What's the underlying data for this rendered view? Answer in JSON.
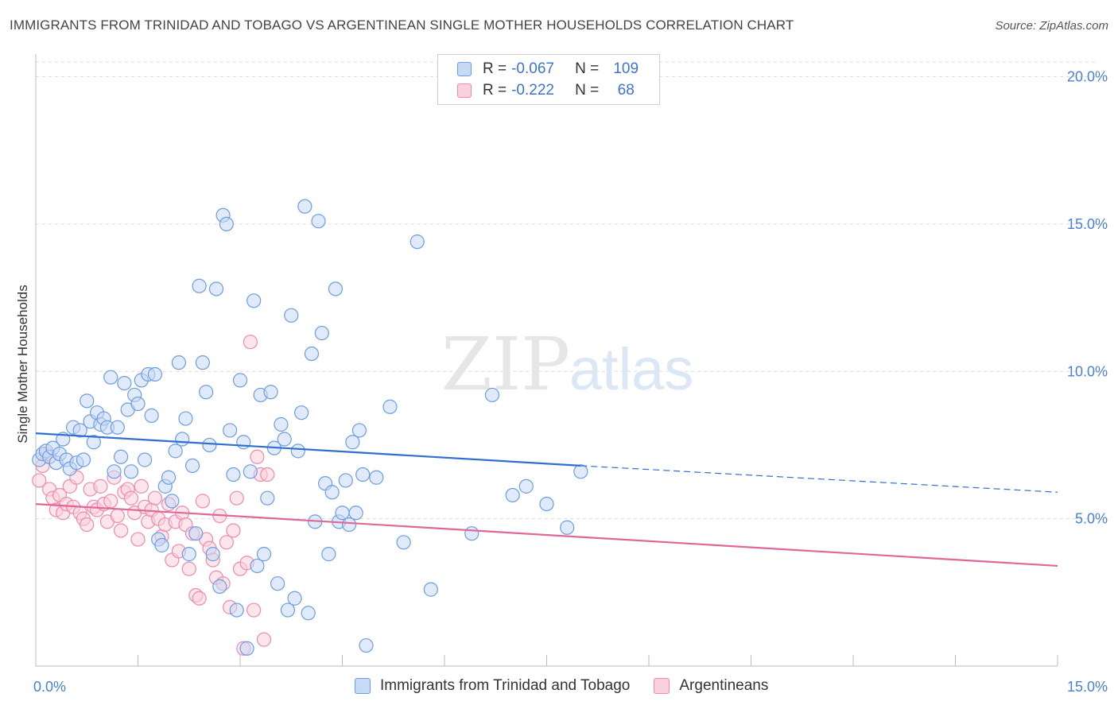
{
  "title": "IMMIGRANTS FROM TRINIDAD AND TOBAGO VS ARGENTINEAN SINGLE MOTHER HOUSEHOLDS CORRELATION CHART",
  "source": "Source: ZipAtlas.com",
  "watermark": {
    "zip": "ZIP",
    "atlas": "atlas"
  },
  "legend": {
    "rows": [
      {
        "r_label": "R =",
        "r_value": "-0.067",
        "n_label": "N =",
        "n_value": "109"
      },
      {
        "r_label": "R =",
        "r_value": "-0.222",
        "n_label": "N =",
        "n_value": "68"
      }
    ]
  },
  "bottom_legend": {
    "series1": "Immigrants from Trinidad and Tobago",
    "series2": "Argentineans"
  },
  "colors": {
    "blue_fill": "#c6d9f5",
    "blue_stroke": "#6d9de0",
    "blue_line": "#2f6fcf",
    "pink_fill": "#fbd0dd",
    "pink_stroke": "#ee8aab",
    "pink_line": "#e0679a",
    "tick_text": "#4a7fd6",
    "grid": "#dcdcdc"
  },
  "chart_data": {
    "type": "scatter",
    "ylabel": "Single Mother Households",
    "xlim": [
      0,
      15
    ],
    "ylim": [
      0,
      20.5
    ],
    "x_tick_labels": [
      {
        "value": 0,
        "label": "0.0%"
      },
      {
        "value": 15,
        "label": "15.0%"
      }
    ],
    "y_tick_labels": [
      {
        "value": 5,
        "label": "5.0%"
      },
      {
        "value": 10,
        "label": "10.0%"
      },
      {
        "value": 15,
        "label": "15.0%"
      },
      {
        "value": 20,
        "label": "20.0%"
      }
    ],
    "series": [
      {
        "name": "Immigrants from Trinidad and Tobago",
        "R": -0.067,
        "N": 109,
        "trend": {
          "x0": 0,
          "y0": 7.9,
          "x_solid_end": 8.0,
          "y_solid_end": 6.8,
          "x1": 15,
          "y1": 5.9
        },
        "points": [
          [
            0.05,
            7.0
          ],
          [
            0.1,
            7.2
          ],
          [
            0.15,
            7.3
          ],
          [
            0.2,
            7.1
          ],
          [
            0.25,
            7.4
          ],
          [
            0.3,
            6.9
          ],
          [
            0.35,
            7.2
          ],
          [
            0.4,
            7.7
          ],
          [
            0.45,
            7.0
          ],
          [
            0.5,
            6.7
          ],
          [
            0.55,
            8.1
          ],
          [
            0.6,
            6.9
          ],
          [
            0.65,
            8.0
          ],
          [
            0.7,
            7.0
          ],
          [
            0.75,
            9.0
          ],
          [
            0.8,
            8.3
          ],
          [
            0.85,
            7.6
          ],
          [
            0.9,
            8.6
          ],
          [
            0.95,
            8.2
          ],
          [
            1.0,
            8.4
          ],
          [
            1.05,
            8.1
          ],
          [
            1.1,
            9.8
          ],
          [
            1.15,
            6.6
          ],
          [
            1.2,
            8.1
          ],
          [
            1.25,
            7.1
          ],
          [
            1.3,
            9.6
          ],
          [
            1.35,
            8.7
          ],
          [
            1.4,
            6.6
          ],
          [
            1.45,
            9.2
          ],
          [
            1.5,
            8.9
          ],
          [
            1.55,
            9.7
          ],
          [
            1.6,
            7.0
          ],
          [
            1.65,
            9.9
          ],
          [
            1.7,
            8.5
          ],
          [
            1.75,
            9.9
          ],
          [
            1.8,
            4.3
          ],
          [
            1.85,
            4.1
          ],
          [
            1.9,
            6.1
          ],
          [
            1.95,
            6.4
          ],
          [
            2.0,
            5.6
          ],
          [
            2.05,
            7.3
          ],
          [
            2.1,
            10.3
          ],
          [
            2.15,
            7.7
          ],
          [
            2.2,
            8.4
          ],
          [
            2.25,
            3.8
          ],
          [
            2.3,
            6.8
          ],
          [
            2.35,
            4.5
          ],
          [
            2.4,
            12.9
          ],
          [
            2.45,
            10.3
          ],
          [
            2.5,
            9.3
          ],
          [
            2.55,
            7.5
          ],
          [
            2.6,
            3.8
          ],
          [
            2.65,
            12.8
          ],
          [
            2.7,
            2.7
          ],
          [
            2.75,
            15.3
          ],
          [
            2.8,
            15.0
          ],
          [
            2.85,
            8.0
          ],
          [
            2.9,
            6.5
          ],
          [
            2.95,
            1.9
          ],
          [
            3.0,
            9.7
          ],
          [
            3.05,
            7.6
          ],
          [
            3.1,
            0.6
          ],
          [
            3.15,
            6.6
          ],
          [
            3.2,
            12.4
          ],
          [
            3.25,
            3.4
          ],
          [
            3.3,
            9.2
          ],
          [
            3.35,
            3.8
          ],
          [
            3.4,
            5.7
          ],
          [
            3.45,
            9.3
          ],
          [
            3.5,
            7.4
          ],
          [
            3.55,
            2.8
          ],
          [
            3.6,
            8.2
          ],
          [
            3.65,
            7.7
          ],
          [
            3.7,
            1.9
          ],
          [
            3.75,
            11.9
          ],
          [
            3.8,
            2.3
          ],
          [
            3.85,
            7.3
          ],
          [
            3.9,
            8.6
          ],
          [
            3.95,
            15.6
          ],
          [
            4.0,
            1.8
          ],
          [
            4.05,
            10.6
          ],
          [
            4.1,
            4.9
          ],
          [
            4.15,
            15.1
          ],
          [
            4.2,
            11.3
          ],
          [
            4.25,
            6.2
          ],
          [
            4.3,
            3.8
          ],
          [
            4.35,
            5.9
          ],
          [
            4.4,
            12.8
          ],
          [
            4.45,
            4.9
          ],
          [
            4.5,
            5.2
          ],
          [
            4.55,
            6.3
          ],
          [
            4.6,
            4.8
          ],
          [
            4.65,
            7.6
          ],
          [
            4.7,
            5.2
          ],
          [
            4.75,
            8.0
          ],
          [
            4.8,
            6.5
          ],
          [
            4.85,
            0.7
          ],
          [
            5.0,
            6.4
          ],
          [
            5.2,
            8.8
          ],
          [
            5.4,
            4.2
          ],
          [
            5.6,
            14.4
          ],
          [
            5.8,
            2.6
          ],
          [
            6.4,
            4.5
          ],
          [
            6.7,
            9.2
          ],
          [
            7.0,
            5.8
          ],
          [
            7.2,
            6.1
          ],
          [
            7.5,
            5.5
          ],
          [
            7.8,
            4.7
          ],
          [
            8.0,
            6.6
          ]
        ]
      },
      {
        "name": "Argentineans",
        "R": -0.222,
        "N": 68,
        "trend": {
          "x0": 0,
          "y0": 5.5,
          "x1": 15,
          "y1": 3.4
        },
        "points": [
          [
            0.05,
            6.3
          ],
          [
            0.1,
            6.8
          ],
          [
            0.15,
            7.2
          ],
          [
            0.2,
            6.0
          ],
          [
            0.25,
            5.7
          ],
          [
            0.3,
            5.3
          ],
          [
            0.35,
            5.8
          ],
          [
            0.4,
            5.2
          ],
          [
            0.45,
            5.5
          ],
          [
            0.5,
            6.1
          ],
          [
            0.55,
            5.4
          ],
          [
            0.6,
            6.4
          ],
          [
            0.65,
            5.2
          ],
          [
            0.7,
            5.0
          ],
          [
            0.75,
            4.8
          ],
          [
            0.8,
            6.0
          ],
          [
            0.85,
            5.4
          ],
          [
            0.9,
            5.3
          ],
          [
            0.95,
            6.1
          ],
          [
            1.0,
            5.5
          ],
          [
            1.05,
            4.9
          ],
          [
            1.1,
            5.6
          ],
          [
            1.15,
            6.4
          ],
          [
            1.2,
            5.1
          ],
          [
            1.25,
            4.6
          ],
          [
            1.3,
            5.9
          ],
          [
            1.35,
            6.0
          ],
          [
            1.4,
            5.7
          ],
          [
            1.45,
            5.2
          ],
          [
            1.5,
            4.3
          ],
          [
            1.55,
            6.1
          ],
          [
            1.6,
            5.4
          ],
          [
            1.65,
            4.9
          ],
          [
            1.7,
            5.3
          ],
          [
            1.75,
            5.7
          ],
          [
            1.8,
            5.0
          ],
          [
            1.85,
            4.4
          ],
          [
            1.9,
            4.8
          ],
          [
            1.95,
            5.5
          ],
          [
            2.0,
            3.6
          ],
          [
            2.05,
            4.9
          ],
          [
            2.1,
            3.9
          ],
          [
            2.15,
            5.2
          ],
          [
            2.2,
            4.8
          ],
          [
            2.25,
            3.3
          ],
          [
            2.3,
            4.5
          ],
          [
            2.35,
            2.4
          ],
          [
            2.4,
            2.3
          ],
          [
            2.45,
            5.6
          ],
          [
            2.5,
            4.3
          ],
          [
            2.55,
            4.0
          ],
          [
            2.6,
            3.6
          ],
          [
            2.65,
            3.0
          ],
          [
            2.7,
            5.1
          ],
          [
            2.75,
            2.8
          ],
          [
            2.8,
            4.2
          ],
          [
            2.85,
            2.0
          ],
          [
            2.9,
            4.6
          ],
          [
            2.95,
            5.7
          ],
          [
            3.0,
            3.3
          ],
          [
            3.05,
            0.6
          ],
          [
            3.1,
            3.5
          ],
          [
            3.15,
            11.0
          ],
          [
            3.2,
            1.9
          ],
          [
            3.25,
            7.1
          ],
          [
            3.3,
            6.5
          ],
          [
            3.35,
            0.9
          ],
          [
            3.4,
            6.5
          ]
        ]
      }
    ]
  }
}
